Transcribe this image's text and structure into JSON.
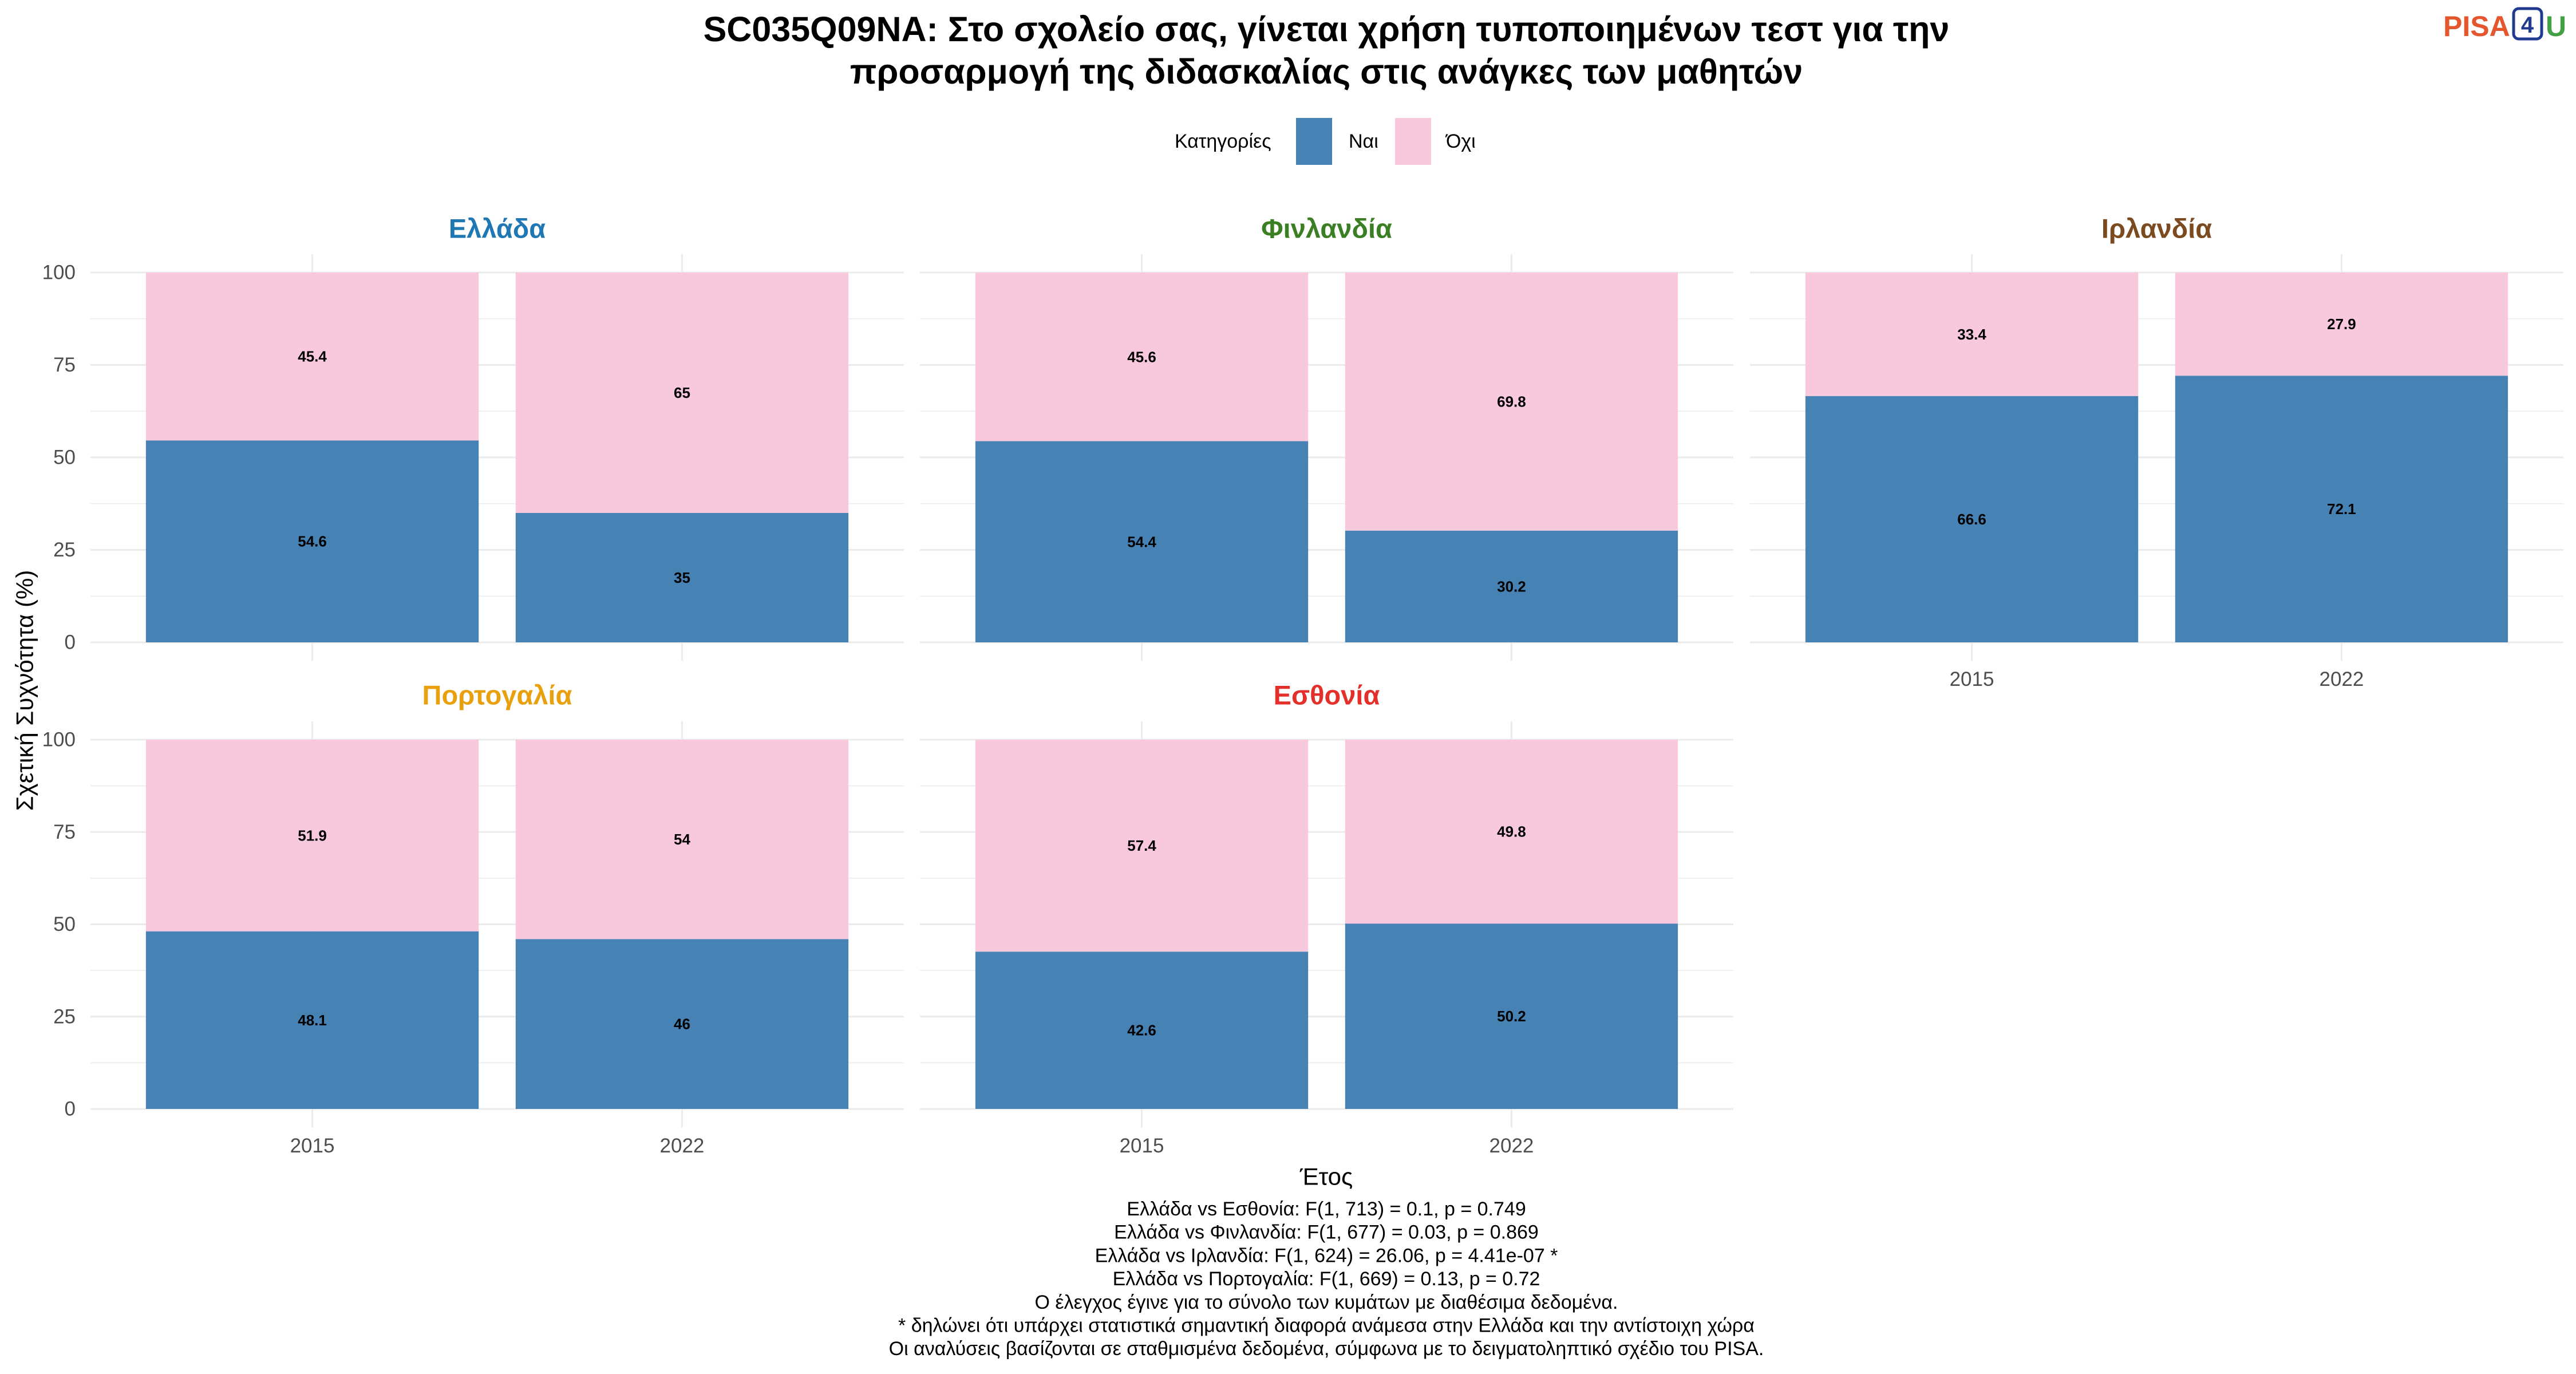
{
  "logo": {
    "parts": [
      {
        "text": "PISA",
        "color": "#E4572E"
      },
      {
        "text": "4",
        "color": "#1F3A8F"
      },
      {
        "text": "U",
        "color": "#43A047"
      }
    ]
  },
  "chart_data": {
    "type": "bar",
    "stacked": true,
    "title": [
      "SC035Q09NA: Στο σχολείο σας, γίνεται χρήση τυποποιημένων τεστ για την",
      "προσαρμογή της διδασκαλίας στις ανάγκες των μαθητών"
    ],
    "xlabel": "Έτος",
    "ylabel": "Σχετική Συχνότητα (%)",
    "categories": [
      "2015",
      "2022"
    ],
    "ylim": [
      0,
      100
    ],
    "yticks": [
      0,
      25,
      50,
      75,
      100
    ],
    "grid": true,
    "legend": {
      "title": "Κατηγορίες",
      "position": "top"
    },
    "series": [
      {
        "name": "Ναι",
        "color": "#4682B4"
      },
      {
        "name": "Όχι",
        "color": "#F8C8DC"
      }
    ],
    "facets": [
      {
        "name": "Ελλάδα",
        "color": "#1F77B4",
        "values": {
          "Ναι": [
            54.6,
            35
          ],
          "Όχι": [
            45.4,
            65
          ]
        }
      },
      {
        "name": "Φινλανδία",
        "color": "#3A7F24",
        "values": {
          "Ναι": [
            54.4,
            30.2
          ],
          "Όχι": [
            45.6,
            69.8
          ]
        }
      },
      {
        "name": "Ιρλανδία",
        "color": "#7B4A1E",
        "values": {
          "Ναι": [
            66.6,
            72.1
          ],
          "Όχι": [
            33.4,
            27.9
          ]
        }
      },
      {
        "name": "Πορτογαλία",
        "color": "#E8A00E",
        "values": {
          "Ναι": [
            48.1,
            46
          ],
          "Όχι": [
            51.9,
            54
          ]
        }
      },
      {
        "name": "Εσθονία",
        "color": "#E3302A",
        "values": {
          "Ναι": [
            42.6,
            50.2
          ],
          "Όχι": [
            57.4,
            49.8
          ]
        }
      }
    ],
    "caption": [
      "Ελλάδα vs Εσθονία: F(1, 713) = 0.1, p = 0.749",
      "Ελλάδα vs Φινλανδία: F(1, 677) = 0.03, p = 0.869",
      "Ελλάδα vs Ιρλανδία: F(1, 624) = 26.06, p = 4.41e-07 *",
      "Ελλάδα vs Πορτογαλία: F(1, 669) = 0.13, p = 0.72",
      "Ο έλεγχος έγινε για το σύνολο των κυμάτων με διαθέσιμα δεδομένα.",
      "* δηλώνει ότι υπάρχει στατιστικά σημαντική διαφορά ανάμεσα στην Ελλάδα και την αντίστοιχη χώρα",
      "Οι αναλύσεις βασίζονται σε σταθμισμένα δεδομένα, σύμφωνα με το δειγματοληπτικό σχέδιο του PISA."
    ]
  }
}
